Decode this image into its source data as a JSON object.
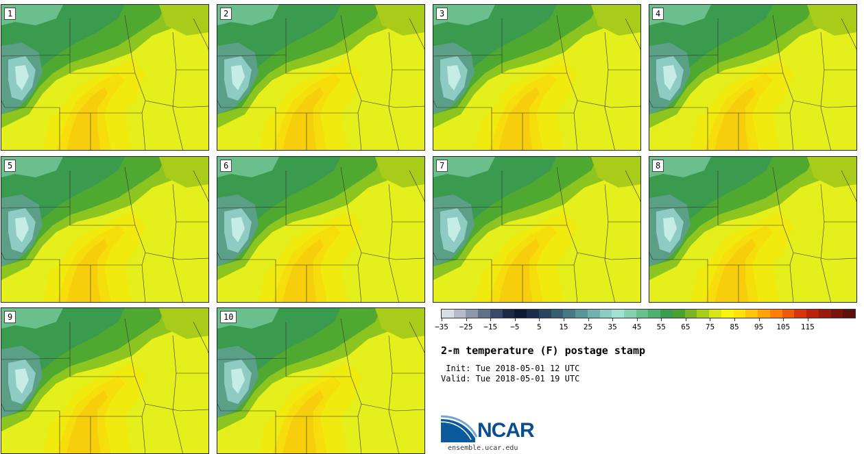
{
  "panels": [
    {
      "label": "1"
    },
    {
      "label": "2"
    },
    {
      "label": "3"
    },
    {
      "label": "4"
    },
    {
      "label": "5"
    },
    {
      "label": "6"
    },
    {
      "label": "7"
    },
    {
      "label": "8"
    },
    {
      "label": "9"
    },
    {
      "label": "10"
    }
  ],
  "colorbar": {
    "colors": [
      "#d9dde4",
      "#b4bac6",
      "#8e97a9",
      "#626f89",
      "#3b4a6b",
      "#1c2a48",
      "#0e1a33",
      "#1a2d4a",
      "#28445e",
      "#365d72",
      "#457a85",
      "#5a9496",
      "#74b0ad",
      "#8ecbc3",
      "#a3e0d4",
      "#86d1b0",
      "#6abf8c",
      "#4fae70",
      "#3a9a4d",
      "#4aa02e",
      "#7ab424",
      "#a9cc1a",
      "#d6e616",
      "#f7f50f",
      "#ffe20c",
      "#ffc40b",
      "#ffa309",
      "#ff7e08",
      "#ef5a09",
      "#d5360b",
      "#b8230d",
      "#981a0e",
      "#7a150d",
      "#5c120c"
    ],
    "ticks": [
      "−35",
      "−25",
      "−15",
      "−5",
      "5",
      "15",
      "25",
      "35",
      "45",
      "55",
      "65",
      "75",
      "85",
      "95",
      "105",
      "115"
    ]
  },
  "title": "2-m temperature (F) postage stamp",
  "init": " Init: Tue 2018-05-01 12 UTC",
  "valid": "Valid: Tue 2018-05-01 19 UTC",
  "logo": {
    "text": "NCAR",
    "url": "ensemble.ucar.edu"
  }
}
